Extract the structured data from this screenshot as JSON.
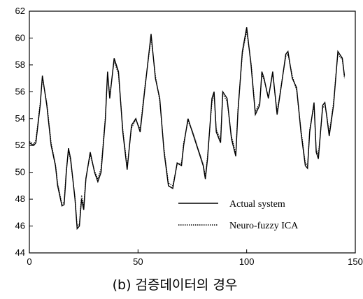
{
  "chart_data": {
    "type": "line",
    "caption": "(b) 검증데이터의 경우",
    "x": [
      0,
      2,
      3,
      5,
      6,
      8,
      10,
      12,
      13,
      15,
      16,
      17,
      18,
      19,
      21,
      22,
      23,
      24,
      25,
      26,
      28,
      30,
      31.5,
      33,
      35,
      36,
      37,
      39,
      41,
      43,
      45,
      47,
      49,
      51,
      53,
      56,
      58,
      60,
      62,
      64,
      66,
      68,
      70,
      71,
      73,
      75,
      78,
      80,
      81,
      82,
      84,
      85,
      86,
      88,
      89,
      91,
      93,
      95,
      96,
      98,
      100,
      102,
      104,
      106,
      107,
      108,
      110,
      112,
      114,
      116,
      118,
      119,
      121,
      123,
      125,
      127,
      128,
      129,
      131,
      132,
      133,
      135,
      136,
      137,
      138,
      140,
      141,
      142,
      144,
      145
    ],
    "series": [
      {
        "name": "Actual system",
        "color": "#000000",
        "style": "solid",
        "values": [
          52.2,
          52,
          52.2,
          55,
          57.2,
          55,
          52,
          50.5,
          49,
          47.5,
          47.6,
          50,
          51.8,
          51,
          48,
          45.8,
          46,
          48,
          47.2,
          49.5,
          51.5,
          50,
          49.3,
          50,
          54,
          57.5,
          55.5,
          58.5,
          57.5,
          53,
          50.2,
          53.5,
          54,
          53,
          56,
          60.3,
          57,
          55.5,
          51.5,
          49,
          48.8,
          50.7,
          50.5,
          52,
          54,
          53,
          51.5,
          50.5,
          49.5,
          51,
          55.5,
          56,
          53,
          52.2,
          56,
          55.5,
          52.5,
          51.2,
          54.5,
          59,
          60.8,
          58,
          54.3,
          55,
          57.5,
          57,
          55.5,
          57.5,
          54.3,
          56.5,
          58.8,
          59,
          57,
          56.3,
          53,
          50.5,
          50.3,
          53,
          55.2,
          51.5,
          51,
          55,
          55.2,
          54,
          52.7,
          55,
          57,
          59,
          58.5,
          57.2
        ]
      },
      {
        "name": "Neuro-fuzzy ICA",
        "color": "#000000",
        "style": "dotted",
        "values": [
          52.3,
          52.1,
          52.4,
          55.2,
          57,
          55.2,
          52.2,
          50.6,
          49.2,
          47.6,
          47.8,
          50.2,
          51.6,
          50.8,
          48.2,
          46,
          46.2,
          48.3,
          47.5,
          49.6,
          51.3,
          50.1,
          49.5,
          50.3,
          54.2,
          57.3,
          55.7,
          58.3,
          57.3,
          53.2,
          50.4,
          53.3,
          53.9,
          53.2,
          56.2,
          60,
          57.2,
          55.3,
          51.7,
          49.2,
          49,
          50.6,
          50.7,
          52.2,
          53.8,
          53.1,
          51.6,
          50.6,
          49.7,
          51.2,
          55.2,
          55.8,
          53.2,
          52.4,
          55.8,
          55.3,
          52.7,
          51.4,
          54.7,
          58.8,
          60.5,
          58.2,
          54.5,
          55.2,
          57.3,
          56.9,
          55.6,
          57.3,
          54.5,
          56.6,
          58.6,
          58.8,
          57.2,
          56.1,
          53.2,
          50.7,
          50.5,
          53.2,
          55,
          51.7,
          51.3,
          54.8,
          55,
          54.1,
          52.9,
          55.2,
          57.1,
          58.8,
          58.4,
          57
        ]
      }
    ],
    "xlim": [
      0,
      150
    ],
    "xticks": [
      0,
      50,
      100,
      150
    ],
    "ylim": [
      44,
      62
    ],
    "yticks": [
      44,
      46,
      48,
      50,
      52,
      54,
      56,
      58,
      60,
      62
    ]
  }
}
